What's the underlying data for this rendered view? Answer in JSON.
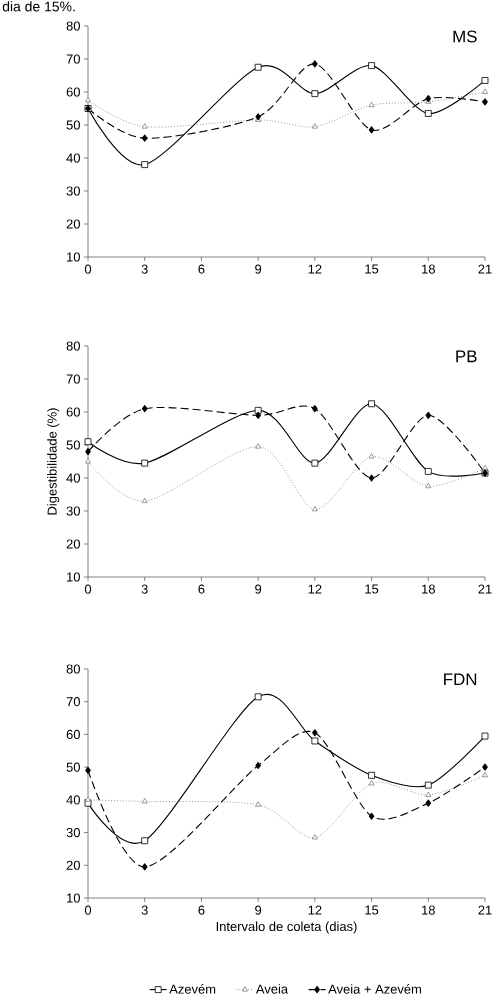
{
  "chart_data": [
    {
      "type": "line",
      "title": "MS",
      "annotations": [
        "dia de 15%."
      ],
      "x": [
        0,
        3,
        9,
        12,
        15,
        18,
        21
      ],
      "xlim": [
        0,
        21
      ],
      "xticks": [
        0,
        3,
        6,
        9,
        12,
        15,
        18,
        21
      ],
      "ylim": [
        10,
        80
      ],
      "yticks": [
        10,
        20,
        30,
        40,
        50,
        60,
        70,
        80
      ],
      "series": [
        {
          "color": "#000000",
          "marker": "square",
          "line_style": "solid",
          "values": [
            55,
            38,
            67.5,
            59.5,
            68,
            53.5,
            63.5
          ]
        },
        {
          "color": "#808080",
          "marker": "triangle",
          "line_style": "dotted",
          "values": [
            57.5,
            49.5,
            51.5,
            49.5,
            56,
            57,
            60
          ]
        },
        {
          "color": "#000000",
          "marker": "diamond",
          "line_style": "dashed",
          "values": [
            55,
            46,
            52.5,
            68.5,
            48.5,
            58,
            57
          ]
        }
      ]
    },
    {
      "type": "line",
      "title": "PB",
      "ylabel": "Digestibilidade (%)",
      "x": [
        0,
        3,
        9,
        12,
        15,
        18,
        21
      ],
      "xlim": [
        0,
        21
      ],
      "xticks": [
        0,
        3,
        6,
        9,
        12,
        15,
        18,
        21
      ],
      "ylim": [
        10,
        80
      ],
      "yticks": [
        10,
        20,
        30,
        40,
        50,
        60,
        70,
        80
      ],
      "series": [
        {
          "color": "#000000",
          "marker": "square",
          "line_style": "solid",
          "values": [
            51,
            44.5,
            60.5,
            44.5,
            62.5,
            42,
            41.5
          ]
        },
        {
          "color": "#808080",
          "marker": "triangle",
          "line_style": "dotted",
          "values": [
            45,
            33,
            49.5,
            30.5,
            46.5,
            37.5,
            43
          ]
        },
        {
          "color": "#000000",
          "marker": "diamond",
          "line_style": "dashed",
          "values": [
            48,
            61,
            59,
            61,
            40,
            59,
            41.5
          ]
        }
      ]
    },
    {
      "type": "line",
      "title": "FDN",
      "xlabel": "Intervalo de coleta (dias)",
      "legend": "bottom",
      "x": [
        0,
        3,
        9,
        12,
        15,
        18,
        21
      ],
      "xlim": [
        0,
        21
      ],
      "xticks": [
        0,
        3,
        6,
        9,
        12,
        15,
        18,
        21
      ],
      "ylim": [
        10,
        80
      ],
      "yticks": [
        10,
        20,
        30,
        40,
        50,
        60,
        70,
        80
      ],
      "series": [
        {
          "name": "Azevém",
          "color": "#000000",
          "marker": "square",
          "line_style": "solid",
          "values": [
            39,
            27.5,
            71.5,
            58,
            47.5,
            44.5,
            59.5
          ]
        },
        {
          "name": "Aveia",
          "color": "#808080",
          "marker": "triangle",
          "line_style": "dotted",
          "values": [
            40,
            39.5,
            38.5,
            28.5,
            45,
            41.5,
            47.5
          ]
        },
        {
          "name": "Aveia + Azevém",
          "color": "#000000",
          "marker": "diamond",
          "line_style": "dashed",
          "values": [
            49,
            19.5,
            50.5,
            60.5,
            35,
            39,
            50
          ]
        }
      ]
    }
  ]
}
